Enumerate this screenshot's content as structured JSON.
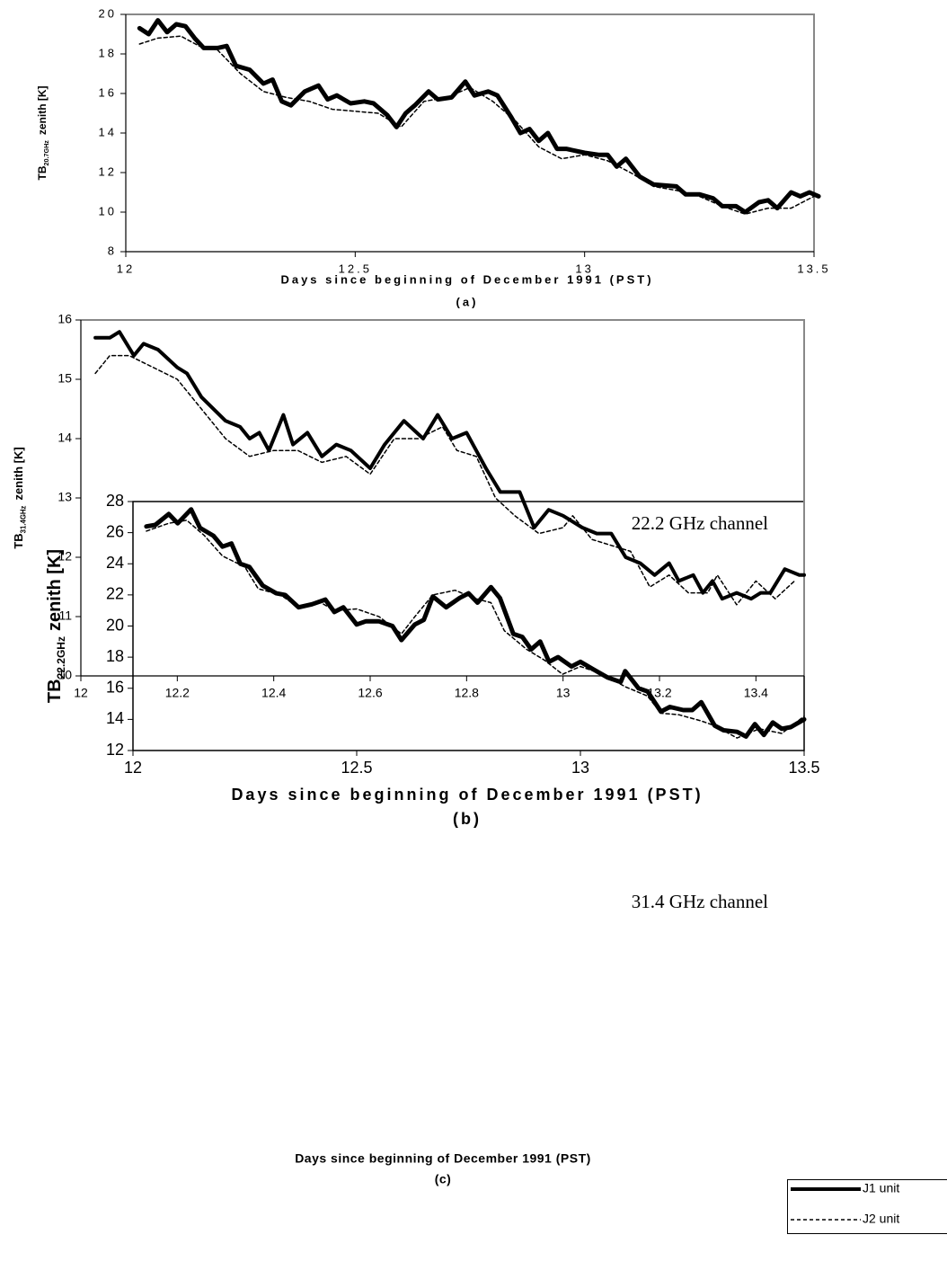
{
  "chart_data": [
    {
      "type": "line",
      "xlabel": "Days since beginning of December 1991 (PST)",
      "caption": "(a)",
      "ylabel": {
        "main": "TB",
        "sub": "20.7GHz",
        "rest": "zenith [K]"
      },
      "xlim": [
        12,
        13.5
      ],
      "xticks": [
        12,
        12.5,
        13,
        13.5
      ],
      "ylim": [
        8,
        20
      ],
      "yticks": [
        8,
        10,
        12,
        14,
        16,
        18,
        20
      ],
      "series": [
        {
          "color": "#000000",
          "line_style": "solid",
          "x": [
            12.03,
            12.05,
            12.07,
            12.09,
            12.11,
            12.13,
            12.15,
            12.17,
            12.2,
            12.22,
            12.24,
            12.27,
            12.3,
            12.32,
            12.34,
            12.36,
            12.39,
            12.42,
            12.44,
            12.46,
            12.49,
            12.52,
            12.54,
            12.57,
            12.59,
            12.61,
            12.63,
            12.66,
            12.68,
            12.71,
            12.74,
            12.76,
            12.79,
            12.81,
            12.84,
            12.86,
            12.88,
            12.9,
            12.92,
            12.94,
            12.96,
            13,
            13.03,
            13.05,
            13.07,
            13.09,
            13.12,
            13.15,
            13.2,
            13.22,
            13.25,
            13.28,
            13.3,
            13.33,
            13.35,
            13.38,
            13.4,
            13.42,
            13.45,
            13.47,
            13.49,
            13.51
          ],
          "values": [
            19.3,
            19.0,
            19.7,
            19.1,
            19.5,
            19.4,
            18.8,
            18.3,
            18.3,
            18.4,
            17.4,
            17.2,
            16.5,
            16.7,
            15.6,
            15.4,
            16.1,
            16.4,
            15.7,
            15.9,
            15.5,
            15.6,
            15.5,
            14.9,
            14.3,
            15.0,
            15.4,
            16.1,
            15.7,
            15.8,
            16.6,
            15.9,
            16.1,
            15.9,
            14.8,
            14.0,
            14.2,
            13.6,
            14.0,
            13.2,
            13.2,
            13.0,
            12.9,
            12.9,
            12.3,
            12.7,
            11.8,
            11.4,
            11.3,
            10.9,
            10.9,
            10.7,
            10.3,
            10.3,
            10.0,
            10.5,
            10.6,
            10.2,
            11.0,
            10.8,
            11.0,
            10.8
          ]
        },
        {
          "color": "#000000",
          "line_style": "dashed",
          "x": [
            12.03,
            12.07,
            12.12,
            12.16,
            12.2,
            12.25,
            12.3,
            12.35,
            12.4,
            12.45,
            12.5,
            12.55,
            12.6,
            12.65,
            12.7,
            12.75,
            12.8,
            12.85,
            12.9,
            12.95,
            13,
            13.05,
            13.1,
            13.15,
            13.2,
            13.25,
            13.3,
            13.35,
            13.4,
            13.45,
            13.5
          ],
          "values": [
            18.5,
            18.8,
            18.9,
            18.4,
            18.2,
            17.0,
            16.1,
            15.8,
            15.6,
            15.2,
            15.1,
            15.0,
            14.3,
            15.6,
            15.8,
            16.3,
            15.6,
            14.6,
            13.3,
            12.7,
            12.9,
            12.6,
            12.0,
            11.3,
            11.1,
            10.8,
            10.3,
            9.9,
            10.2,
            10.2,
            10.8
          ]
        }
      ]
    },
    {
      "type": "line",
      "annotation": "22.2 GHz channel",
      "xlabel": "Days since beginning of December 1991 (PST)",
      "caption": "(b)",
      "ylabel": {
        "main": "TB",
        "sub": "22.2GHz",
        "rest": "zenith [K]"
      },
      "xlim": [
        12,
        13.5
      ],
      "xticks": [
        12,
        12.5,
        13,
        13.5
      ],
      "ylim": [
        12,
        28
      ],
      "yticks": [
        12,
        14,
        16,
        18,
        20,
        22,
        24,
        26,
        28
      ],
      "series": [
        {
          "color": "#000000",
          "line_style": "solid",
          "x": [
            12.03,
            12.05,
            12.08,
            12.1,
            12.13,
            12.15,
            12.18,
            12.2,
            12.22,
            12.24,
            12.26,
            12.29,
            12.32,
            12.34,
            12.37,
            12.4,
            12.43,
            12.45,
            12.47,
            12.5,
            12.52,
            12.55,
            12.58,
            12.6,
            12.63,
            12.65,
            12.67,
            12.7,
            12.73,
            12.75,
            12.77,
            12.8,
            12.82,
            12.85,
            12.87,
            12.89,
            12.91,
            12.93,
            12.95,
            12.98,
            13,
            13.03,
            13.06,
            13.09,
            13.1,
            13.13,
            13.15,
            13.18,
            13.2,
            13.23,
            13.25,
            13.27,
            13.3,
            13.32,
            13.35,
            13.37,
            13.39,
            13.41,
            13.43,
            13.45,
            13.47,
            13.5
          ],
          "values": [
            26.4,
            26.5,
            27.2,
            26.6,
            27.5,
            26.3,
            25.8,
            25.1,
            25.3,
            24.0,
            23.8,
            22.6,
            22.1,
            22.0,
            21.2,
            21.4,
            21.7,
            20.9,
            21.2,
            20.1,
            20.3,
            20.3,
            20.0,
            19.1,
            20.1,
            20.4,
            21.9,
            21.2,
            21.8,
            22.1,
            21.5,
            22.5,
            21.8,
            19.5,
            19.3,
            18.5,
            19.0,
            17.7,
            18.0,
            17.4,
            17.7,
            17.2,
            16.7,
            16.4,
            17.1,
            16.0,
            15.8,
            14.5,
            14.8,
            14.6,
            14.6,
            15.1,
            13.6,
            13.3,
            13.2,
            12.9,
            13.7,
            13.0,
            13.8,
            13.4,
            13.5,
            14.0
          ]
        },
        {
          "color": "#000000",
          "line_style": "dashed",
          "x": [
            12.03,
            12.08,
            12.12,
            12.16,
            12.2,
            12.25,
            12.28,
            12.33,
            12.37,
            12.42,
            12.45,
            12.5,
            12.55,
            12.6,
            12.63,
            12.67,
            12.72,
            12.76,
            12.8,
            12.83,
            12.88,
            12.92,
            12.96,
            13,
            13.05,
            13.1,
            13.15,
            13.18,
            13.22,
            13.27,
            13.3,
            13.35,
            13.4,
            13.45,
            13.5
          ],
          "values": [
            26.1,
            26.6,
            26.8,
            25.8,
            24.5,
            23.8,
            22.4,
            22.0,
            21.2,
            21.5,
            21.0,
            21.1,
            20.6,
            19.5,
            20.6,
            22.0,
            22.3,
            21.8,
            21.5,
            19.7,
            18.5,
            17.8,
            16.9,
            17.4,
            16.9,
            16.1,
            15.5,
            14.4,
            14.3,
            13.9,
            13.6,
            12.8,
            13.4,
            13.1,
            14.2
          ]
        }
      ]
    },
    {
      "type": "line",
      "annotation": "31.4 GHz channel",
      "xlabel": "Days since beginning of December 1991 (PST)",
      "caption": "(c)",
      "ylabel": {
        "main": "TB",
        "sub": "31.4GHz",
        "rest": "zenith [K]"
      },
      "xlim": [
        12,
        13.5
      ],
      "xticks": [
        12,
        12.2,
        12.4,
        12.6,
        12.8,
        13,
        13.2,
        13.4
      ],
      "ylim": [
        10,
        16
      ],
      "yticks": [
        10,
        11,
        12,
        13,
        14,
        15,
        16
      ],
      "legend": "outside-bottom-right",
      "series": [
        {
          "name": "J1 unit",
          "color": "#000000",
          "line_style": "solid",
          "x": [
            12.03,
            12.06,
            12.08,
            12.11,
            12.13,
            12.16,
            12.2,
            12.22,
            12.25,
            12.3,
            12.33,
            12.35,
            12.37,
            12.39,
            12.42,
            12.44,
            12.47,
            12.5,
            12.53,
            12.56,
            12.6,
            12.63,
            12.67,
            12.71,
            12.74,
            12.77,
            12.8,
            12.84,
            12.87,
            12.91,
            12.94,
            12.97,
            13,
            13.04,
            13.07,
            13.1,
            13.13,
            13.16,
            13.19,
            13.22,
            13.24,
            13.27,
            13.29,
            13.31,
            13.33,
            13.36,
            13.39,
            13.41,
            13.43,
            13.46,
            13.49,
            13.5
          ],
          "values": [
            15.7,
            15.7,
            15.8,
            15.4,
            15.6,
            15.5,
            15.2,
            15.1,
            14.7,
            14.3,
            14.2,
            14.0,
            14.1,
            13.8,
            14.4,
            13.9,
            14.1,
            13.7,
            13.9,
            13.8,
            13.5,
            13.9,
            14.3,
            14.0,
            14.4,
            14.0,
            14.1,
            13.5,
            13.1,
            13.1,
            12.5,
            12.8,
            12.7,
            12.5,
            12.4,
            12.4,
            12.0,
            11.9,
            11.7,
            11.9,
            11.6,
            11.7,
            11.4,
            11.6,
            11.3,
            11.4,
            11.3,
            11.4,
            11.4,
            11.8,
            11.7,
            11.7
          ]
        },
        {
          "name": "J2 unit",
          "color": "#000000",
          "line_style": "dashed",
          "x": [
            12.03,
            12.06,
            12.1,
            12.15,
            12.2,
            12.25,
            12.3,
            12.35,
            12.4,
            12.45,
            12.5,
            12.55,
            12.6,
            12.65,
            12.7,
            12.75,
            12.78,
            12.82,
            12.86,
            12.9,
            12.95,
            13,
            13.02,
            13.06,
            13.1,
            13.14,
            13.18,
            13.22,
            13.26,
            13.3,
            13.32,
            13.36,
            13.4,
            13.44,
            13.48
          ],
          "values": [
            15.1,
            15.4,
            15.4,
            15.2,
            15.0,
            14.5,
            14.0,
            13.7,
            13.8,
            13.8,
            13.6,
            13.7,
            13.4,
            14.0,
            14.0,
            14.2,
            13.8,
            13.7,
            13.0,
            12.7,
            12.4,
            12.5,
            12.7,
            12.3,
            12.2,
            12.1,
            11.5,
            11.7,
            11.4,
            11.4,
            11.7,
            11.2,
            11.6,
            11.3,
            11.6
          ]
        }
      ]
    }
  ]
}
